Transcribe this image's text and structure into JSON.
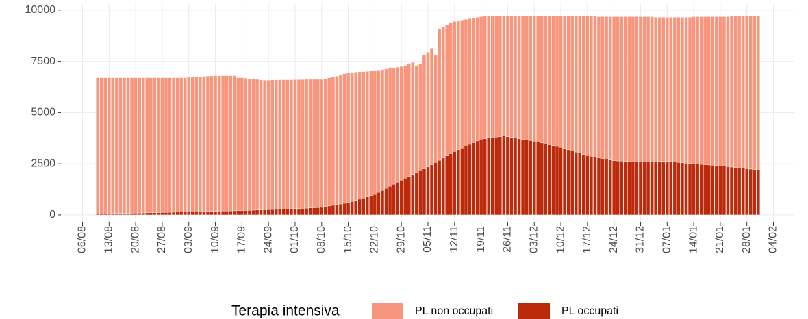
{
  "chart_data": {
    "type": "bar",
    "stacked": true,
    "x": [
      4,
      5,
      6,
      7,
      8,
      9,
      10,
      11,
      12,
      13,
      14,
      15,
      16,
      17,
      18,
      19,
      20,
      21,
      22,
      23,
      24,
      25,
      26,
      27,
      28,
      29,
      30,
      31,
      32,
      33,
      34,
      35,
      36,
      37,
      38,
      39,
      40,
      41,
      42,
      43,
      44,
      45,
      46,
      47,
      48,
      49,
      50,
      51,
      52,
      53,
      54,
      55,
      56,
      57,
      58,
      59,
      60,
      61,
      62,
      63,
      64,
      65,
      66,
      67,
      68,
      69,
      70,
      71,
      72,
      73,
      74,
      75,
      76,
      77,
      78,
      79,
      80,
      81,
      82,
      83,
      84,
      85,
      86,
      87,
      88,
      89,
      90,
      91,
      92,
      93,
      94,
      95,
      96,
      97,
      98,
      99,
      100,
      101,
      102,
      103,
      104,
      105,
      106,
      107,
      108,
      109,
      110,
      111,
      112,
      113,
      114,
      115,
      116,
      117,
      118,
      119,
      120,
      121,
      122,
      123,
      124,
      125,
      126,
      127,
      128,
      129,
      130,
      131,
      132,
      133,
      134,
      135,
      136,
      137,
      138,
      139,
      140,
      141,
      142,
      143,
      144,
      145,
      146,
      147,
      148,
      149,
      150,
      151,
      152,
      153,
      154,
      155,
      156,
      157,
      158,
      159,
      160,
      161,
      162,
      163,
      164,
      165,
      166,
      167,
      168,
      169,
      170,
      171,
      172,
      173,
      174,
      175,
      176,
      177,
      178
    ],
    "series": [
      {
        "name": "PL non occupati",
        "color": "#f8967d",
        "values": [
          6650,
          6646,
          6642,
          6638,
          6634,
          6630,
          6626,
          6622,
          6618,
          6614,
          6610,
          6606,
          6601,
          6597,
          6593,
          6589,
          6584,
          6580,
          6576,
          6571,
          6567,
          6563,
          6559,
          6554,
          6570,
          6586,
          6591,
          6597,
          6603,
          6609,
          6614,
          6620,
          6616,
          6611,
          6607,
          6603,
          6599,
          6494,
          6490,
          6463,
          6436,
          6409,
          6381,
          6354,
          6327,
          6320,
          6324,
          6319,
          6323,
          6317,
          6311,
          6306,
          6310,
          6300,
          6290,
          6290,
          6280,
          6270,
          6260,
          6250,
          6257,
          6264,
          6271,
          6279,
          6316,
          6333,
          6350,
          6303,
          6266,
          6219,
          6171,
          6124,
          6087,
          6050,
          5980,
          5900,
          5830,
          5760,
          5690,
          5620,
          5550,
          5507,
          5514,
          5471,
          5229,
          5236,
          5543,
          5600,
          5693,
          5236,
          6429,
          6421,
          6414,
          6387,
          6350,
          6294,
          6249,
          6193,
          6147,
          6091,
          6036,
          5980,
          5975,
          5950,
          5925,
          5900,
          5875,
          5850,
          5881,
          5912,
          5944,
          5975,
          6006,
          6037,
          6069,
          6100,
          6143,
          6186,
          6229,
          6271,
          6314,
          6357,
          6400,
          6457,
          6514,
          6571,
          6629,
          6686,
          6743,
          6800,
          6836,
          6871,
          6887,
          6923,
          6959,
          6994,
          7030,
          7040,
          7050,
          7060,
          7070,
          7080,
          7090,
          7100,
          7094,
          7089,
          7083,
          7047,
          7041,
          7036,
          7030,
          7047,
          7064,
          7081,
          7099,
          7116,
          7133,
          7180,
          7194,
          7209,
          7223,
          7237,
          7251,
          7266,
          7280,
          7300,
          7320,
          7360,
          7380,
          7400,
          7420,
          7440,
          7460,
          7480,
          7500
        ]
      },
      {
        "name": "PL occupati",
        "color": "#bb2a0b",
        "values": [
          50,
          54,
          58,
          62,
          66,
          70,
          74,
          78,
          82,
          86,
          90,
          94,
          99,
          103,
          107,
          111,
          116,
          120,
          124,
          129,
          133,
          137,
          141,
          146,
          150,
          154,
          159,
          163,
          167,
          171,
          176,
          180,
          184,
          189,
          193,
          197,
          201,
          206,
          210,
          217,
          224,
          231,
          239,
          246,
          253,
          260,
          266,
          271,
          277,
          283,
          289,
          294,
          300,
          310,
          320,
          330,
          340,
          350,
          360,
          370,
          403,
          436,
          469,
          501,
          534,
          567,
          600,
          657,
          714,
          771,
          829,
          886,
          943,
          1000,
          1100,
          1200,
          1300,
          1400,
          1500,
          1600,
          1700,
          1793,
          1886,
          1979,
          2071,
          2164,
          2257,
          2350,
          2457,
          2564,
          2671,
          2779,
          2886,
          2993,
          3100,
          3186,
          3271,
          3357,
          3443,
          3529,
          3614,
          3700,
          3725,
          3750,
          3775,
          3800,
          3825,
          3850,
          3819,
          3788,
          3756,
          3725,
          3694,
          3663,
          3631,
          3600,
          3557,
          3514,
          3471,
          3429,
          3386,
          3343,
          3300,
          3243,
          3186,
          3129,
          3071,
          3014,
          2957,
          2900,
          2864,
          2829,
          2793,
          2757,
          2721,
          2686,
          2650,
          2640,
          2630,
          2620,
          2610,
          2600,
          2590,
          2580,
          2586,
          2591,
          2597,
          2603,
          2609,
          2614,
          2620,
          2603,
          2586,
          2569,
          2551,
          2534,
          2517,
          2500,
          2486,
          2471,
          2457,
          2443,
          2429,
          2414,
          2400,
          2380,
          2360,
          2340,
          2320,
          2300,
          2280,
          2260,
          2240,
          2220,
          2200
        ]
      }
    ],
    "xlim": [
      -5.5,
      187.5
    ],
    "xticks": [
      {
        "value": 0,
        "label": "06/08"
      },
      {
        "value": 7,
        "label": "13/08"
      },
      {
        "value": 14,
        "label": "20/08"
      },
      {
        "value": 21,
        "label": "27/08"
      },
      {
        "value": 28,
        "label": "03/09"
      },
      {
        "value": 35,
        "label": "10/09"
      },
      {
        "value": 42,
        "label": "17/09"
      },
      {
        "value": 49,
        "label": "24/09"
      },
      {
        "value": 56,
        "label": "01/10"
      },
      {
        "value": 63,
        "label": "08/10"
      },
      {
        "value": 70,
        "label": "15/10"
      },
      {
        "value": 77,
        "label": "22/10"
      },
      {
        "value": 84,
        "label": "29/10"
      },
      {
        "value": 91,
        "label": "05/11"
      },
      {
        "value": 98,
        "label": "12/11"
      },
      {
        "value": 105,
        "label": "19/11"
      },
      {
        "value": 112,
        "label": "26/11"
      },
      {
        "value": 119,
        "label": "03/12"
      },
      {
        "value": 126,
        "label": "10/12"
      },
      {
        "value": 133,
        "label": "17/12"
      },
      {
        "value": 140,
        "label": "24/12"
      },
      {
        "value": 147,
        "label": "31/12"
      },
      {
        "value": 154,
        "label": "07/01"
      },
      {
        "value": 161,
        "label": "14/01"
      },
      {
        "value": 168,
        "label": "21/01"
      },
      {
        "value": 175,
        "label": "28/01"
      },
      {
        "value": 182,
        "label": "04/02"
      }
    ],
    "ylim": [
      -370,
      10330
    ],
    "yticks": [
      0,
      2500,
      5000,
      7500,
      10000
    ],
    "grid": true,
    "legend_title": "Terapia intensiva",
    "legend_position": "bottom"
  }
}
